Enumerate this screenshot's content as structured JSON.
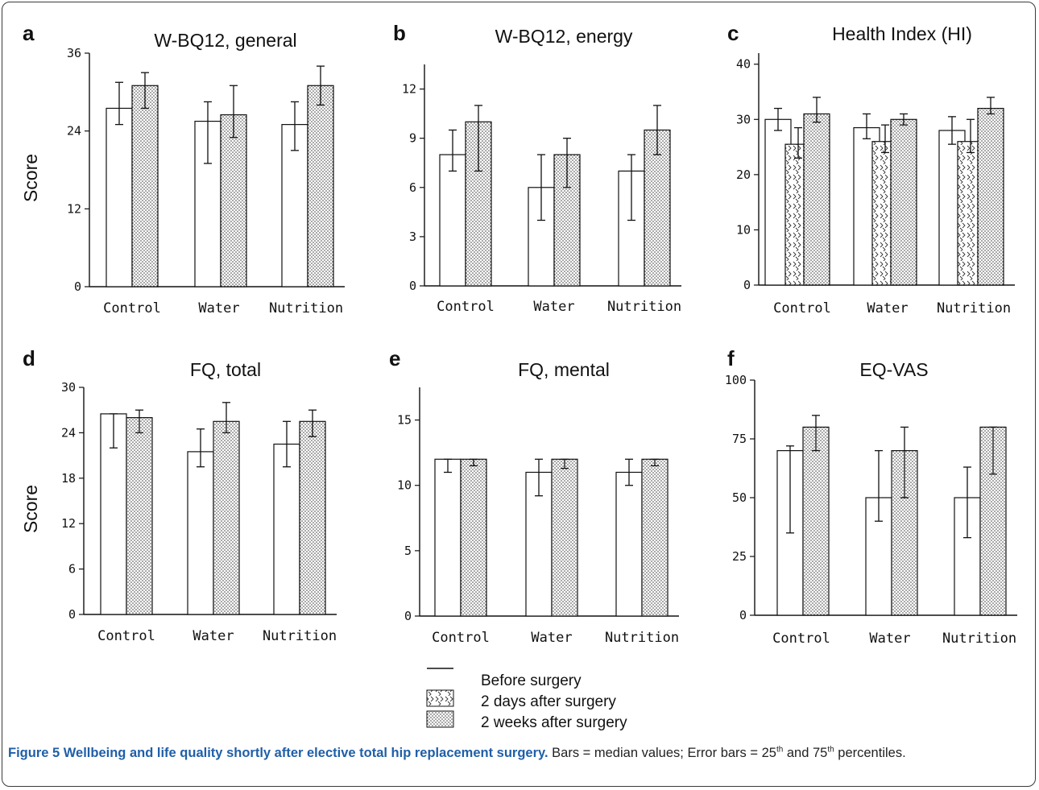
{
  "legend": {
    "before": "Before surgery",
    "days2": "2 days after surgery",
    "weeks2": "2 weeks after surgery"
  },
  "caption": {
    "title": "Figure 5 Wellbeing and life quality shortly after elective total hip replacement surgery.",
    "text1": " Bars = median values; Error bars = 25",
    "sup1": "th",
    "text2": " and 75",
    "sup2": "th",
    "text3": " percentiles."
  },
  "chart_data": [
    {
      "panel": "a",
      "type": "bar",
      "title": "W-BQ12, general",
      "ylabel": "Score",
      "categories": [
        "Control",
        "Water",
        "Nutrition"
      ],
      "ylim": [
        0,
        36
      ],
      "yticks": [
        0,
        12,
        24,
        36
      ],
      "series": [
        {
          "name": "Before surgery",
          "values": [
            27.5,
            25.5,
            25
          ],
          "err_low": [
            25,
            19,
            21
          ],
          "err_high": [
            31.5,
            28.5,
            28.5
          ]
        },
        {
          "name": "2 weeks after surgery",
          "values": [
            31,
            26.5,
            31
          ],
          "err_low": [
            27.5,
            23,
            28
          ],
          "err_high": [
            33,
            31,
            34
          ]
        }
      ]
    },
    {
      "panel": "b",
      "type": "bar",
      "title": "W-BQ12, energy",
      "ylabel": "",
      "categories": [
        "Control",
        "Water",
        "Nutrition"
      ],
      "ylim": [
        0,
        13.5
      ],
      "yticks": [
        0,
        3,
        6,
        9,
        12
      ],
      "series": [
        {
          "name": "Before surgery",
          "values": [
            8,
            6,
            7
          ],
          "err_low": [
            7,
            4,
            4
          ],
          "err_high": [
            9.5,
            8,
            8
          ]
        },
        {
          "name": "2 weeks after surgery",
          "values": [
            10,
            8,
            9.5
          ],
          "err_low": [
            7,
            6,
            8
          ],
          "err_high": [
            11,
            9,
            11
          ]
        }
      ]
    },
    {
      "panel": "c",
      "type": "bar",
      "title": "Health Index (HI)",
      "ylabel": "",
      "categories": [
        "Control",
        "Water",
        "Nutrition"
      ],
      "ylim": [
        0,
        42
      ],
      "yticks": [
        0,
        10,
        20,
        30,
        40
      ],
      "series": [
        {
          "name": "Before surgery",
          "values": [
            30,
            28.5,
            28
          ],
          "err_low": [
            28,
            26.5,
            25.5
          ],
          "err_high": [
            32,
            31,
            30.5
          ]
        },
        {
          "name": "2 days after surgery",
          "values": [
            25.5,
            26,
            26
          ],
          "err_low": [
            23,
            24,
            24
          ],
          "err_high": [
            28.5,
            29,
            30
          ]
        },
        {
          "name": "2 weeks after surgery",
          "values": [
            31,
            30,
            32
          ],
          "err_low": [
            29.5,
            29,
            31
          ],
          "err_high": [
            34,
            31,
            34
          ]
        }
      ]
    },
    {
      "panel": "d",
      "type": "bar",
      "title": "FQ, total",
      "ylabel": "Score",
      "categories": [
        "Control",
        "Water",
        "Nutrition"
      ],
      "ylim": [
        0,
        30
      ],
      "yticks": [
        0,
        6,
        12,
        18,
        24,
        30
      ],
      "series": [
        {
          "name": "Before surgery",
          "values": [
            26.5,
            21.5,
            22.5
          ],
          "err_low": [
            22,
            19.5,
            19.5
          ],
          "err_high": [
            26.5,
            24.5,
            25.5
          ]
        },
        {
          "name": "2 weeks after surgery",
          "values": [
            26,
            25.5,
            25.5
          ],
          "err_low": [
            24,
            24,
            23.5
          ],
          "err_high": [
            27,
            28,
            27
          ]
        }
      ]
    },
    {
      "panel": "e",
      "type": "bar",
      "title": "FQ, mental",
      "ylabel": "",
      "categories": [
        "Control",
        "Water",
        "Nutrition"
      ],
      "ylim": [
        0,
        17.5
      ],
      "yticks": [
        0,
        5,
        10,
        15
      ],
      "series": [
        {
          "name": "Before surgery",
          "values": [
            12,
            11,
            11
          ],
          "err_low": [
            11,
            9.2,
            10
          ],
          "err_high": [
            12,
            12,
            12
          ]
        },
        {
          "name": "2 weeks after surgery",
          "values": [
            12,
            12,
            12
          ],
          "err_low": [
            11.5,
            11.3,
            11.5
          ],
          "err_high": [
            12,
            12,
            12
          ]
        }
      ]
    },
    {
      "panel": "f",
      "type": "bar",
      "title": "EQ-VAS",
      "ylabel": "",
      "categories": [
        "Control",
        "Water",
        "Nutrition"
      ],
      "ylim": [
        0,
        100
      ],
      "yticks": [
        0,
        25,
        50,
        75,
        100
      ],
      "series": [
        {
          "name": "Before surgery",
          "values": [
            70,
            50,
            50
          ],
          "err_low": [
            35,
            40,
            33
          ],
          "err_high": [
            72,
            70,
            63
          ]
        },
        {
          "name": "2 weeks after surgery",
          "values": [
            80,
            70,
            80
          ],
          "err_low": [
            70,
            50,
            60
          ],
          "err_high": [
            85,
            80,
            80
          ]
        }
      ]
    }
  ]
}
